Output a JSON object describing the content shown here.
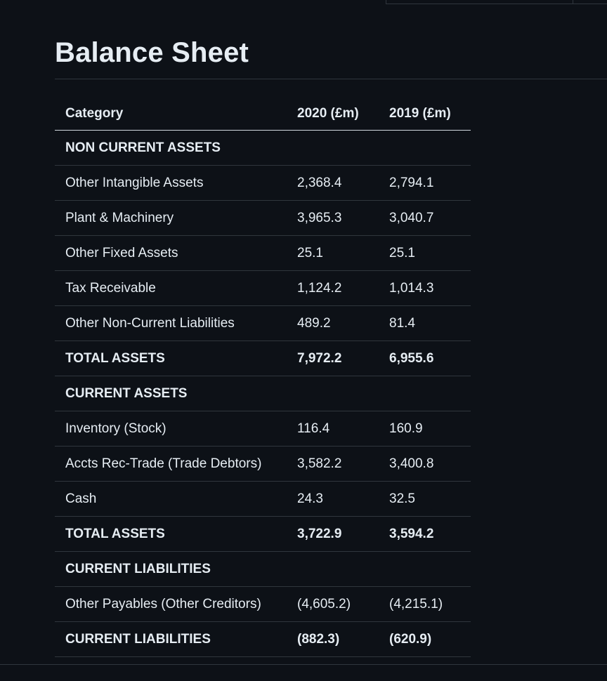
{
  "page": {
    "title": "Balance Sheet"
  },
  "table": {
    "headers": [
      "Category",
      "2020 (£m)",
      "2019 (£m)"
    ],
    "rows": [
      {
        "category": "NON CURRENT ASSETS",
        "y2020": "",
        "y2019": "",
        "bold": true
      },
      {
        "category": "Other Intangible Assets",
        "y2020": "2,368.4",
        "y2019": "2,794.1",
        "bold": false
      },
      {
        "category": "Plant & Machinery",
        "y2020": "3,965.3",
        "y2019": "3,040.7",
        "bold": false
      },
      {
        "category": "Other Fixed Assets",
        "y2020": "25.1",
        "y2019": "25.1",
        "bold": false
      },
      {
        "category": "Tax Receivable",
        "y2020": "1,124.2",
        "y2019": "1,014.3",
        "bold": false
      },
      {
        "category": "Other Non-Current Liabilities",
        "y2020": "489.2",
        "y2019": "81.4",
        "bold": false
      },
      {
        "category": "TOTAL ASSETS",
        "y2020": "7,972.2",
        "y2019": "6,955.6",
        "bold": true
      },
      {
        "category": "CURRENT ASSETS",
        "y2020": "",
        "y2019": "",
        "bold": true
      },
      {
        "category": "Inventory (Stock)",
        "y2020": "116.4",
        "y2019": "160.9",
        "bold": false
      },
      {
        "category": "Accts Rec-Trade (Trade Debtors)",
        "y2020": "3,582.2",
        "y2019": "3,400.8",
        "bold": false
      },
      {
        "category": "Cash",
        "y2020": "24.3",
        "y2019": "32.5",
        "bold": false
      },
      {
        "category": "TOTAL ASSETS",
        "y2020": "3,722.9",
        "y2019": "3,594.2",
        "bold": true
      },
      {
        "category": "CURRENT LIABILITIES",
        "y2020": "",
        "y2019": "",
        "bold": true
      },
      {
        "category": "Other Payables (Other Creditors)",
        "y2020": "(4,605.2)",
        "y2019": "(4,215.1)",
        "bold": false
      },
      {
        "category": "CURRENT LIABILITIES",
        "y2020": "(882.3)",
        "y2019": "(620.9)",
        "bold": true
      }
    ]
  }
}
